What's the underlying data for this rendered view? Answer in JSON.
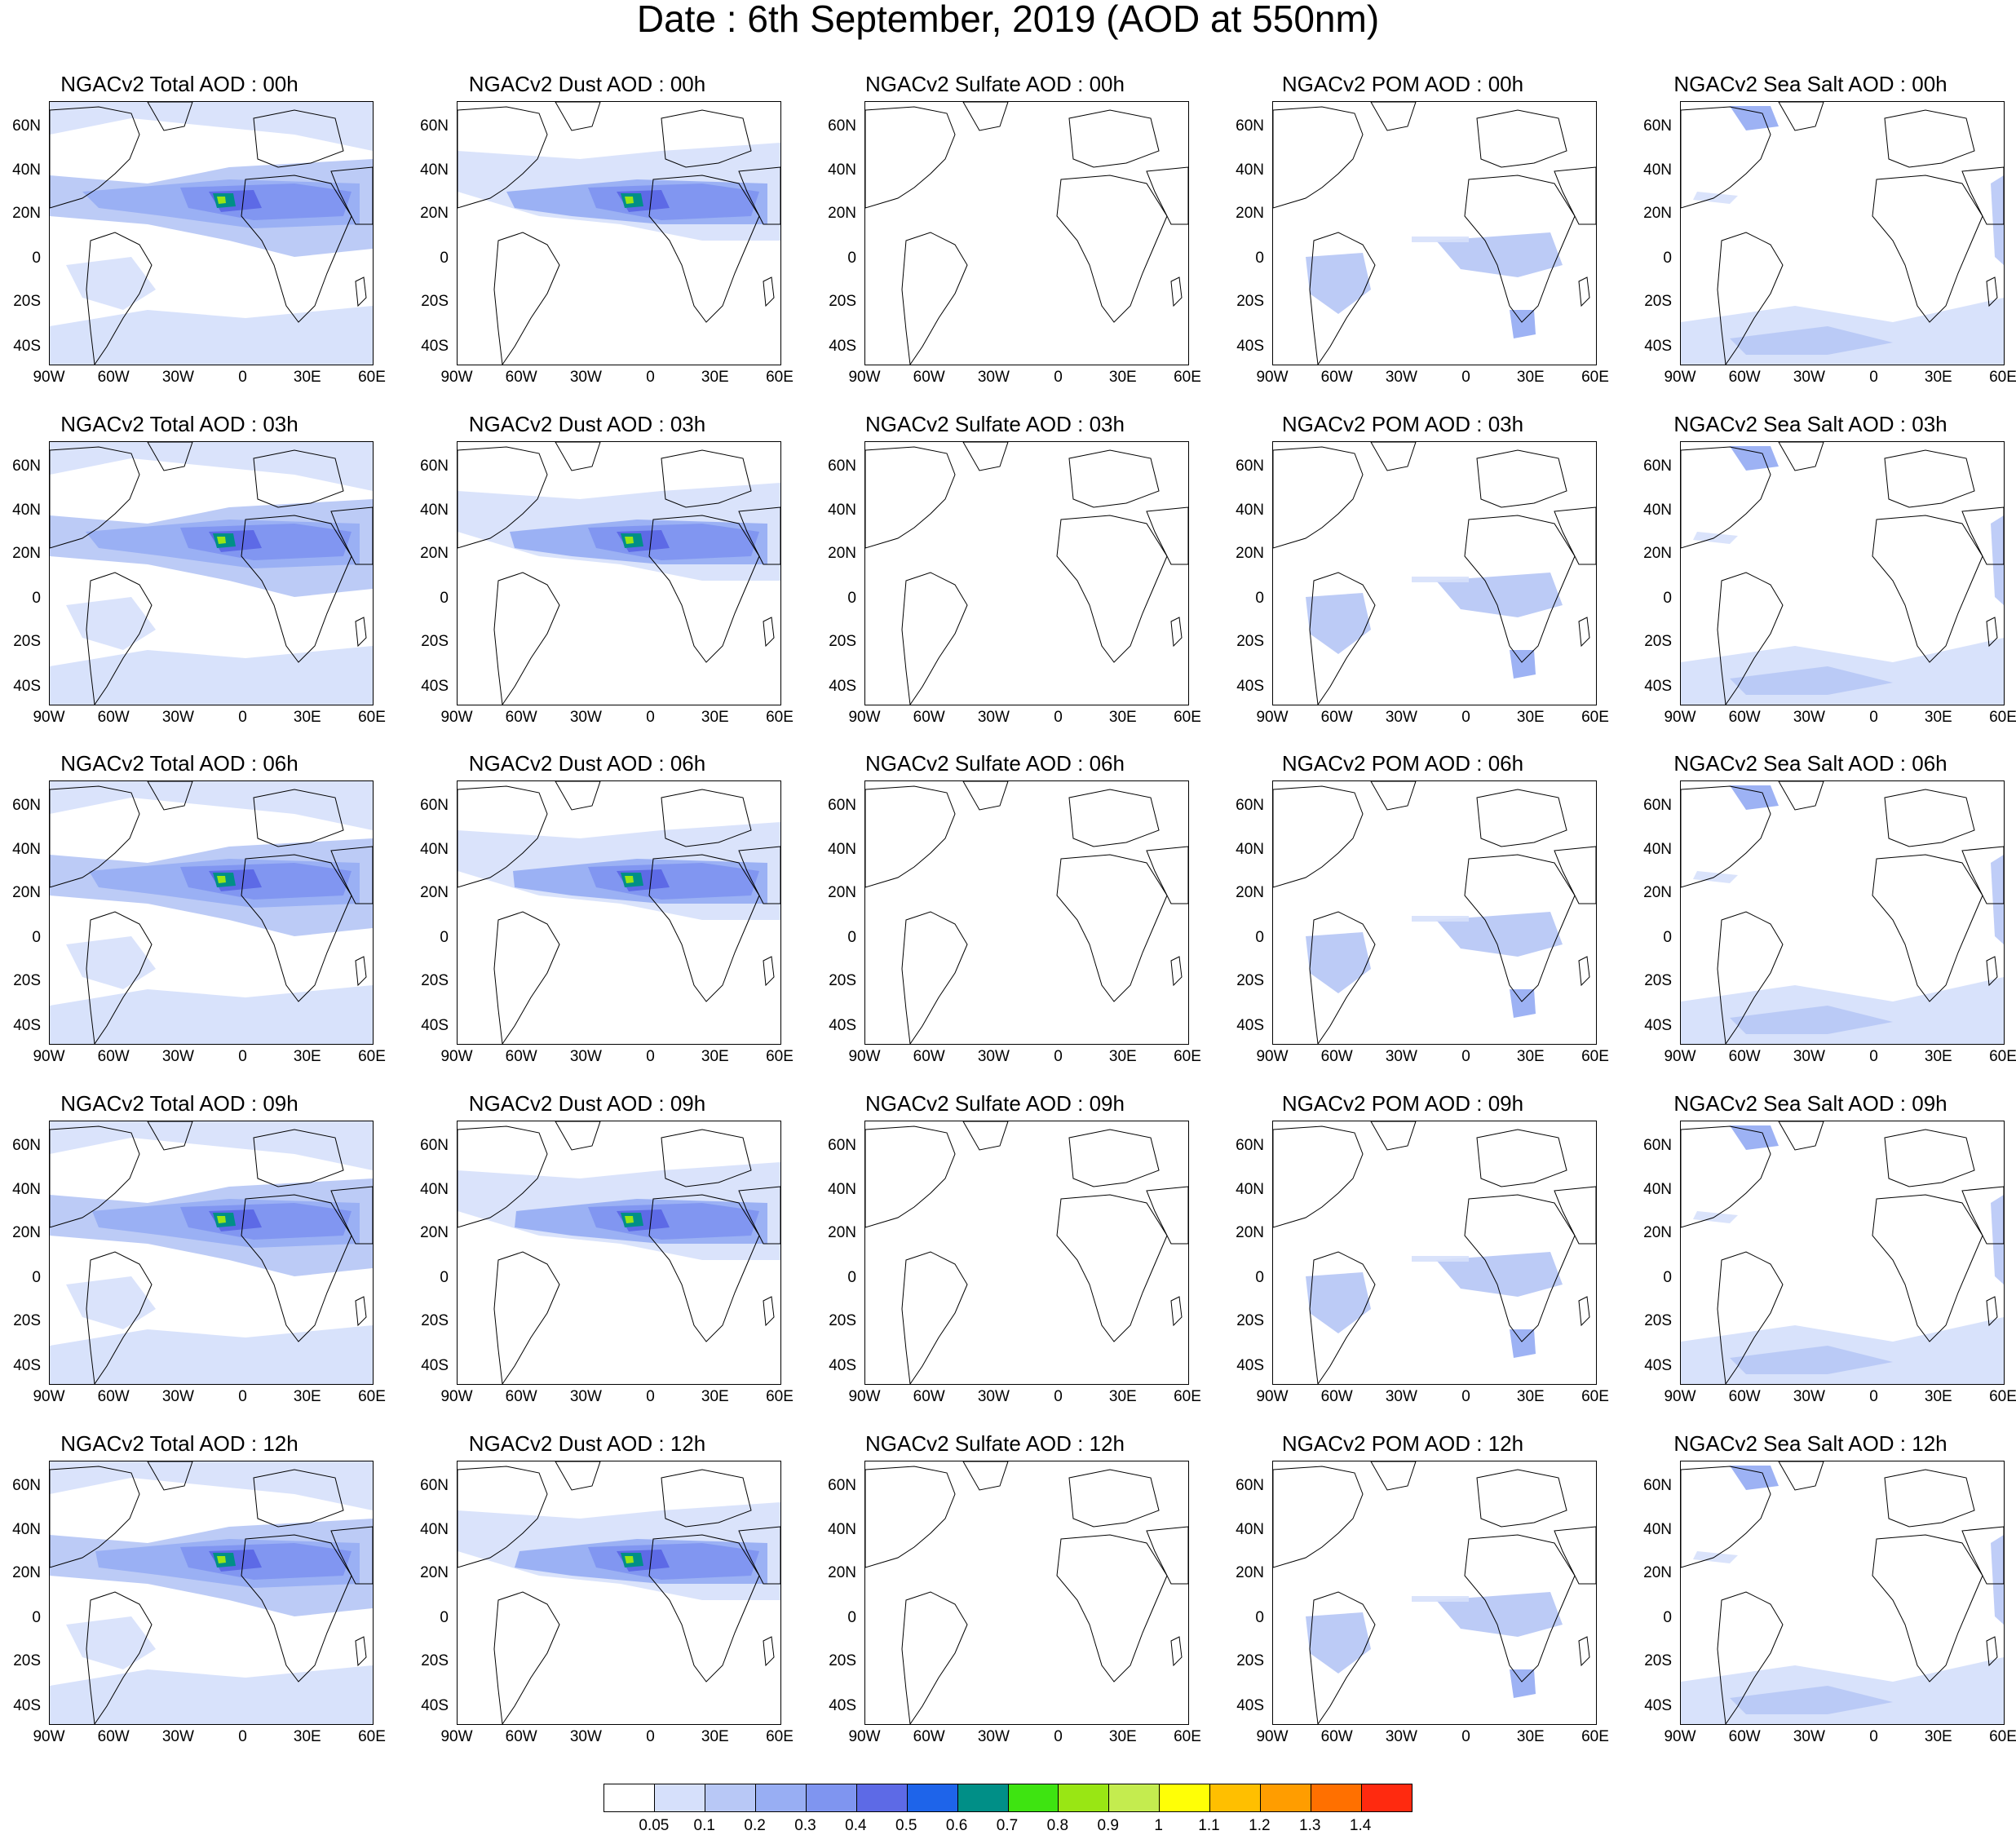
{
  "title": "Date : 6th September, 2019 (AOD at 550nm)",
  "panels": [
    [
      "NGACv2 Total AOD : 00h",
      "NGACv2 Dust AOD : 00h",
      "NGACv2 Sulfate AOD : 00h",
      "NGACv2 POM AOD : 00h",
      "NGACv2 Sea Salt AOD : 00h"
    ],
    [
      "NGACv2 Total AOD : 03h",
      "NGACv2 Dust AOD : 03h",
      "NGACv2 Sulfate AOD : 03h",
      "NGACv2 POM AOD : 03h",
      "NGACv2 Sea Salt AOD : 03h"
    ],
    [
      "NGACv2 Total AOD : 06h",
      "NGACv2 Dust AOD : 06h",
      "NGACv2 Sulfate AOD : 06h",
      "NGACv2 POM AOD : 06h",
      "NGACv2 Sea Salt AOD : 06h"
    ],
    [
      "NGACv2 Total AOD : 09h",
      "NGACv2 Dust AOD : 09h",
      "NGACv2 Sulfate AOD : 09h",
      "NGACv2 POM AOD : 09h",
      "NGACv2 Sea Salt  AOD : 09h"
    ],
    [
      "NGACv2 Total AOD  : 12h",
      "NGACv2 Dust AOD : 12h",
      "NGACv2 Sulfate AOD : 12h",
      "NGACv2 POM  AOD : 12h",
      "NGACv2 Sea Salt  AOD : 12h"
    ]
  ],
  "lat_ticks": [
    "60N",
    "40N",
    "20N",
    "0",
    "20S",
    "40S"
  ],
  "lon_ticks": [
    "90W",
    "60W",
    "30W",
    "0",
    "30E",
    "60E"
  ],
  "colorbar": {
    "labels": [
      "0.05",
      "0.1",
      "0.2",
      "0.3",
      "0.4",
      "0.5",
      "0.6",
      "0.7",
      "0.8",
      "0.9",
      "1",
      "1.1",
      "1.2",
      "1.3",
      "1.4"
    ],
    "colors": [
      "#ffffff",
      "#d6e0fb",
      "#b8c8f6",
      "#98aef3",
      "#7f95f0",
      "#5d6ae6",
      "#1e64ea",
      "#008f87",
      "#3ee411",
      "#99e614",
      "#c4ec4f",
      "#ffff06",
      "#ffbf00",
      "#ff9d00",
      "#ff7000",
      "#ff2a0f"
    ]
  }
}
